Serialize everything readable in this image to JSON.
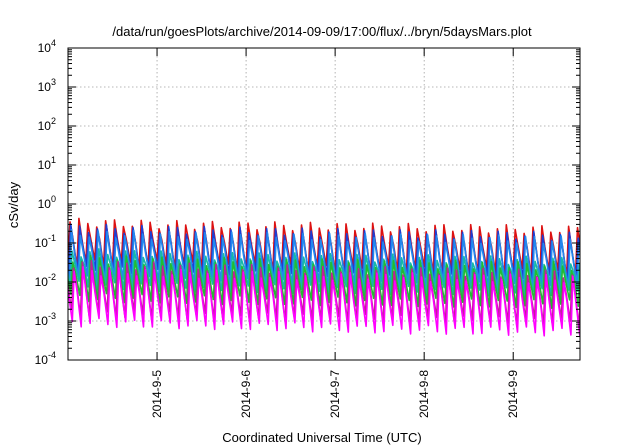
{
  "chart_data": {
    "type": "line",
    "title": "/data/run/goesPlots/archive/2014-09-09/17:00/flux/../bryn/5daysMars.plot",
    "xlabel": "Coordinated Universal Time (UTC)",
    "ylabel": "cSv/day",
    "yscale": "log",
    "ylim": [
      0.0001,
      10000
    ],
    "y_ticks": [
      {
        "base": "10",
        "exp": "-4",
        "value": 0.0001
      },
      {
        "base": "10",
        "exp": "-3",
        "value": 0.001
      },
      {
        "base": "10",
        "exp": "-2",
        "value": 0.01
      },
      {
        "base": "10",
        "exp": "-1",
        "value": 0.1
      },
      {
        "base": "10",
        "exp": "0",
        "value": 1
      },
      {
        "base": "10",
        "exp": "1",
        "value": 10
      },
      {
        "base": "10",
        "exp": "2",
        "value": 100
      },
      {
        "base": "10",
        "exp": "3",
        "value": 1000
      },
      {
        "base": "10",
        "exp": "4",
        "value": 10000
      }
    ],
    "xlim": [
      "2014-09-04T00:00",
      "2014-09-09T18:00"
    ],
    "x_ticks": [
      {
        "label": "2014-9-5",
        "date": "2014-09-05"
      },
      {
        "label": "2014-9-6",
        "date": "2014-09-06"
      },
      {
        "label": "2014-9-7",
        "date": "2014-09-07"
      },
      {
        "label": "2014-9-8",
        "date": "2014-09-08"
      },
      {
        "label": "2014-9-9",
        "date": "2014-09-09"
      }
    ],
    "grid": true,
    "orbit_period_hours": 2.4,
    "series": [
      {
        "color": "#dd1111",
        "peak": [
          0.35,
          0.3,
          0.28,
          0.26,
          0.24,
          0.22
        ],
        "trough": [
          0.03,
          0.026,
          0.022,
          0.02,
          0.018,
          0.016
        ]
      },
      {
        "color": "#1a3fd6",
        "peak": [
          0.25,
          0.22,
          0.2,
          0.18,
          0.17,
          0.15
        ],
        "trough": [
          0.02,
          0.017,
          0.015,
          0.013,
          0.012,
          0.011
        ]
      },
      {
        "color": "#2288ee",
        "peak": [
          0.18,
          0.16,
          0.15,
          0.14,
          0.13,
          0.12
        ],
        "trough": [
          0.012,
          0.01,
          0.009,
          0.008,
          0.0075,
          0.007
        ]
      },
      {
        "color": "#16b8a8",
        "peak": [
          0.06,
          0.05,
          0.045,
          0.042,
          0.038,
          0.035
        ],
        "trough": [
          0.008,
          0.007,
          0.0065,
          0.006,
          0.0055,
          0.005
        ]
      },
      {
        "color": "#22bb33",
        "peak": [
          0.04,
          0.035,
          0.032,
          0.03,
          0.028,
          0.026
        ],
        "trough": [
          0.004,
          0.0035,
          0.0032,
          0.003,
          0.0028,
          0.0026
        ]
      },
      {
        "color": "#c0209a",
        "peak": [
          0.03,
          0.025,
          0.022,
          0.02,
          0.018,
          0.016
        ],
        "trough": [
          0.0015,
          0.0013,
          0.0012,
          0.0011,
          0.001,
          0.0009
        ]
      },
      {
        "color": "#ff00ff",
        "peak": [
          0.02,
          0.017,
          0.015,
          0.014,
          0.013,
          0.012
        ],
        "trough": [
          0.0009,
          0.0008,
          0.0007,
          0.0006,
          0.00055,
          0.0005
        ]
      }
    ]
  }
}
